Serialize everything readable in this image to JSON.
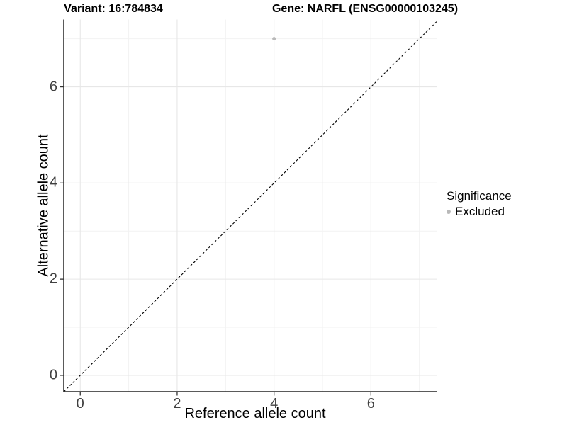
{
  "header": {
    "title_left": "Variant: 16:784834",
    "title_right": "Gene: NARFL (ENSG00000103245)"
  },
  "chart_data": {
    "type": "scatter",
    "title": "Variant: 16:784834   Gene: NARFL (ENSG00000103245)",
    "xlabel": "Reference allele count",
    "ylabel": "Alternative allele count",
    "xlim": [
      -0.34,
      7.37
    ],
    "ylim": [
      -0.34,
      7.4
    ],
    "x_ticks": [
      0,
      2,
      4,
      6
    ],
    "y_ticks": [
      0,
      2,
      4,
      6
    ],
    "x_minor_gridlines": [
      1,
      3,
      5,
      7
    ],
    "y_minor_gridlines": [
      1,
      3,
      5,
      7
    ],
    "grid": true,
    "series": [
      {
        "name": "Excluded",
        "color": "#b9b9b9",
        "points": [
          {
            "x": 4,
            "y": 7
          }
        ]
      }
    ],
    "reference_line": {
      "kind": "identity",
      "slope": 1,
      "intercept": 0,
      "style": "dashed",
      "color": "#000000"
    },
    "legend": {
      "title": "Significance",
      "position": "right",
      "entries": [
        {
          "label": "Excluded",
          "color": "#b9b9b9"
        }
      ]
    }
  },
  "colors": {
    "background": "#ffffff",
    "major_grid": "#e7e7e7",
    "minor_grid": "#f2f2f2",
    "axis_line": "#232323",
    "tick_mark": "#333333",
    "tick_text": "#404040",
    "point": "#b9b9b9"
  }
}
